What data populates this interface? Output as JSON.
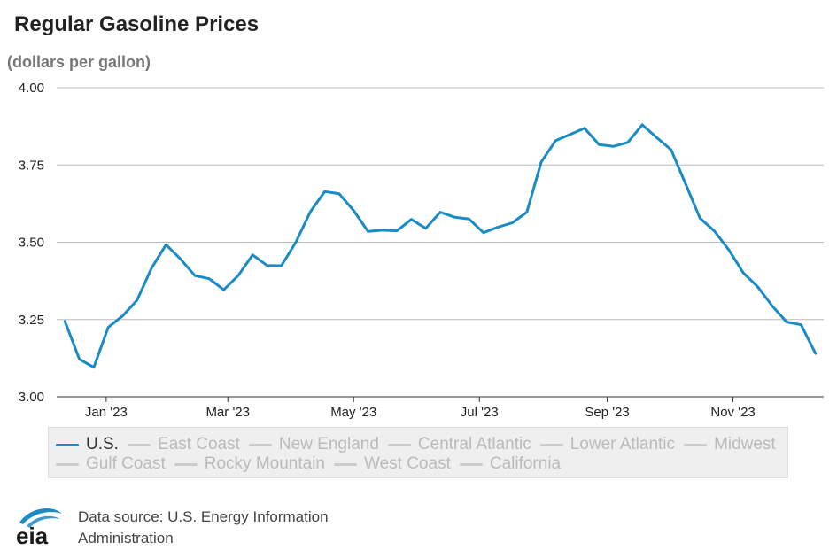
{
  "chart_data": {
    "type": "line",
    "title": "Regular Gasoline Prices",
    "subtitle": "(dollars per gallon)",
    "xlabel": "",
    "ylabel": "",
    "ylim": [
      3.0,
      4.0
    ],
    "yticks": [
      "4.00",
      "3.75",
      "3.50",
      "3.25",
      "3.00"
    ],
    "xticks": [
      "Jan '23",
      "Mar '23",
      "May '23",
      "Jul '23",
      "Sep '23",
      "Nov '23"
    ],
    "xtick_dates": [
      "2023-01-01",
      "2023-03-01",
      "2023-05-01",
      "2023-07-01",
      "2023-09-01",
      "2023-11-01"
    ],
    "grid": true,
    "legend_position": "bottom",
    "series": [
      {
        "name": "U.S.",
        "color": "#1a8bc4",
        "visible": true,
        "x": [
          "2022-12-12",
          "2022-12-19",
          "2022-12-26",
          "2023-01-02",
          "2023-01-09",
          "2023-01-16",
          "2023-01-23",
          "2023-01-30",
          "2023-02-06",
          "2023-02-13",
          "2023-02-20",
          "2023-02-27",
          "2023-03-06",
          "2023-03-13",
          "2023-03-20",
          "2023-03-27",
          "2023-04-03",
          "2023-04-10",
          "2023-04-17",
          "2023-04-24",
          "2023-05-01",
          "2023-05-08",
          "2023-05-15",
          "2023-05-22",
          "2023-05-29",
          "2023-06-05",
          "2023-06-12",
          "2023-06-19",
          "2023-06-26",
          "2023-07-03",
          "2023-07-10",
          "2023-07-17",
          "2023-07-24",
          "2023-07-31",
          "2023-08-07",
          "2023-08-14",
          "2023-08-21",
          "2023-08-28",
          "2023-09-04",
          "2023-09-11",
          "2023-09-18",
          "2023-09-25",
          "2023-10-02",
          "2023-10-09",
          "2023-10-16",
          "2023-10-23",
          "2023-10-30",
          "2023-11-06",
          "2023-11-13",
          "2023-11-20",
          "2023-11-27",
          "2023-12-04",
          "2023-12-11"
        ],
        "values": [
          3.244,
          3.122,
          3.095,
          3.225,
          3.262,
          3.313,
          3.416,
          3.492,
          3.446,
          3.392,
          3.382,
          3.346,
          3.392,
          3.459,
          3.425,
          3.424,
          3.5,
          3.598,
          3.664,
          3.657,
          3.603,
          3.535,
          3.539,
          3.537,
          3.574,
          3.545,
          3.597,
          3.581,
          3.575,
          3.531,
          3.549,
          3.563,
          3.597,
          3.76,
          3.829,
          3.849,
          3.869,
          3.816,
          3.81,
          3.823,
          3.88,
          3.839,
          3.799,
          3.689,
          3.578,
          3.536,
          3.475,
          3.401,
          3.356,
          3.294,
          3.242,
          3.233,
          3.14
        ]
      },
      {
        "name": "East Coast",
        "color": "#cccccc",
        "visible": false
      },
      {
        "name": "New England",
        "color": "#cccccc",
        "visible": false
      },
      {
        "name": "Central Atlantic",
        "color": "#cccccc",
        "visible": false
      },
      {
        "name": "Lower Atlantic",
        "color": "#cccccc",
        "visible": false
      },
      {
        "name": "Midwest",
        "color": "#cccccc",
        "visible": false
      },
      {
        "name": "Gulf Coast",
        "color": "#cccccc",
        "visible": false
      },
      {
        "name": "Rocky Mountain",
        "color": "#cccccc",
        "visible": false
      },
      {
        "name": "West Coast",
        "color": "#cccccc",
        "visible": false
      },
      {
        "name": "California",
        "color": "#cccccc",
        "visible": false
      }
    ]
  },
  "footer": {
    "source": "Data source: U.S. Energy Information Administration",
    "logo_text": "eia",
    "logo_color": "#1a8bc4"
  },
  "colors": {
    "legend_active_text": "#333333",
    "legend_inactive_text": "#bbbbbb",
    "gridline": "#bbbbbb"
  }
}
